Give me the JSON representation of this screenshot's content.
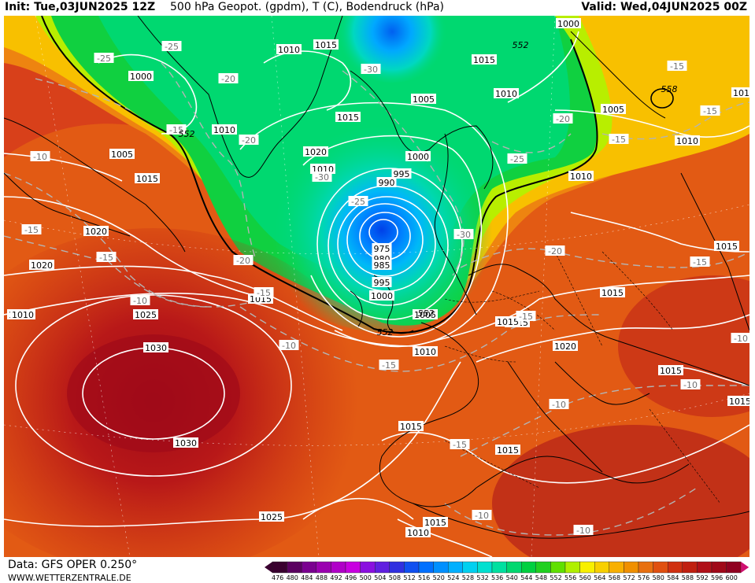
{
  "header": {
    "init": "Init: Tue,03JUN2025 12Z",
    "title": "500 hPa Geopot. (gpdm), T (C), Bodendruck (hPa)",
    "valid": "Valid: Wed,04JUN2025 00Z"
  },
  "footer": {
    "data_source": "Data: GFS OPER 0.250°",
    "website": "WWW.WETTERZENTRALE.DE"
  },
  "colorbar": {
    "ticks": [
      "476",
      "480",
      "484",
      "488",
      "492",
      "496",
      "500",
      "504",
      "508",
      "512",
      "516",
      "520",
      "524",
      "528",
      "532",
      "536",
      "540",
      "544",
      "548",
      "552",
      "556",
      "560",
      "564",
      "568",
      "572",
      "576",
      "580",
      "584",
      "588",
      "592",
      "596",
      "600"
    ],
    "colors": [
      "#3a0030",
      "#5a0060",
      "#7a0090",
      "#9a00b0",
      "#b000c8",
      "#c800e0",
      "#8a10e0",
      "#6020e0",
      "#3030e0",
      "#1050f0",
      "#0070ff",
      "#0090ff",
      "#00b0ff",
      "#00d0f0",
      "#00e0d0",
      "#00e0a0",
      "#00d870",
      "#00d040",
      "#20d020",
      "#60e000",
      "#b0f000",
      "#f8f000",
      "#f8d000",
      "#f8b000",
      "#f09000",
      "#e87010",
      "#e05010",
      "#d03010",
      "#c02010",
      "#b01018",
      "#a00818",
      "#900020"
    ]
  },
  "map": {
    "isobar_labels": [
      "1000",
      "1005",
      "1010",
      "1015",
      "1020",
      "1025",
      "1030",
      "990",
      "995",
      "975",
      "980",
      "985"
    ],
    "temp_labels": [
      "-10",
      "-15",
      "-20",
      "-25",
      "-30"
    ],
    "geopot_labels": [
      "552",
      "558"
    ],
    "labels": [
      {
        "t": "1000",
        "k": "p"
      },
      {
        "t": "1005",
        "k": "p"
      },
      {
        "t": "1010",
        "k": "p"
      },
      {
        "t": "1010",
        "k": "p"
      },
      {
        "t": "1015",
        "k": "p"
      },
      {
        "t": "1015",
        "k": "p"
      },
      {
        "t": "1010",
        "k": "p"
      },
      {
        "t": "1005",
        "k": "p"
      },
      {
        "t": "1015",
        "k": "p"
      },
      {
        "t": "1020",
        "k": "p"
      },
      {
        "t": "1010",
        "k": "p"
      },
      {
        "t": "1000",
        "k": "p"
      },
      {
        "t": "995",
        "k": "p"
      },
      {
        "t": "990",
        "k": "p"
      },
      {
        "t": "975",
        "k": "p"
      },
      {
        "t": "980",
        "k": "p"
      },
      {
        "t": "985",
        "k": "p"
      },
      {
        "t": "995",
        "k": "p"
      },
      {
        "t": "1000",
        "k": "p"
      },
      {
        "t": "1005",
        "k": "p"
      },
      {
        "t": "1010",
        "k": "p"
      },
      {
        "t": "1015",
        "k": "p"
      },
      {
        "t": "1015",
        "k": "p"
      },
      {
        "t": "1020",
        "k": "p"
      },
      {
        "t": "1020",
        "k": "p"
      },
      {
        "t": "1025",
        "k": "p"
      },
      {
        "t": "1030",
        "k": "p"
      },
      {
        "t": "1030",
        "k": "p"
      },
      {
        "t": "1025",
        "k": "p"
      },
      {
        "t": "1015",
        "k": "p"
      },
      {
        "t": "1015",
        "k": "p"
      },
      {
        "t": "1010",
        "k": "p"
      },
      {
        "t": "1000",
        "k": "p"
      },
      {
        "t": "1015",
        "k": "p"
      },
      {
        "t": "1010",
        "k": "p"
      },
      {
        "t": "1005",
        "k": "p"
      },
      {
        "t": "1010",
        "k": "p"
      },
      {
        "t": "1010",
        "k": "p"
      },
      {
        "t": "1015",
        "k": "p"
      },
      {
        "t": "1015",
        "k": "p"
      },
      {
        "t": "1015",
        "k": "p"
      },
      {
        "t": "1015",
        "k": "p"
      },
      {
        "t": "1020",
        "k": "p"
      },
      {
        "t": "1015",
        "k": "p"
      },
      {
        "t": "1015",
        "k": "p"
      },
      {
        "t": "1015",
        "k": "p"
      },
      {
        "t": "1010",
        "k": "p"
      },
      {
        "t": "1015",
        "k": "p"
      },
      {
        "t": "1020",
        "k": "p"
      },
      {
        "t": "1015",
        "k": "p"
      },
      {
        "t": "-25",
        "k": "t"
      },
      {
        "t": "-25",
        "k": "t"
      },
      {
        "t": "-20",
        "k": "t"
      },
      {
        "t": "-30",
        "k": "t"
      },
      {
        "t": "-15",
        "k": "t"
      },
      {
        "t": "-20",
        "k": "t"
      },
      {
        "t": "-10",
        "k": "t"
      },
      {
        "t": "-30",
        "k": "t"
      },
      {
        "t": "-25",
        "k": "t"
      },
      {
        "t": "-15",
        "k": "t"
      },
      {
        "t": "-15",
        "k": "t"
      },
      {
        "t": "-20",
        "k": "t"
      },
      {
        "t": "-30",
        "k": "t"
      },
      {
        "t": "-10",
        "k": "t"
      },
      {
        "t": "-15",
        "k": "t"
      },
      {
        "t": "-10",
        "k": "t"
      },
      {
        "t": "-15",
        "k": "t"
      },
      {
        "t": "-20",
        "k": "t"
      },
      {
        "t": "-25",
        "k": "t"
      },
      {
        "t": "-15",
        "k": "t"
      },
      {
        "t": "-15",
        "k": "t"
      },
      {
        "t": "-15",
        "k": "t"
      },
      {
        "t": "-20",
        "k": "t"
      },
      {
        "t": "-15",
        "k": "t"
      },
      {
        "t": "-15",
        "k": "t"
      },
      {
        "t": "-10",
        "k": "t"
      },
      {
        "t": "-10",
        "k": "t"
      },
      {
        "t": "-15",
        "k": "t"
      },
      {
        "t": "-10",
        "k": "t"
      },
      {
        "t": "-10",
        "k": "t"
      },
      {
        "t": "-10",
        "k": "t"
      },
      {
        "t": "-10",
        "k": "t"
      },
      {
        "t": "552",
        "k": "g"
      },
      {
        "t": "552",
        "k": "g"
      },
      {
        "t": "552",
        "k": "g"
      },
      {
        "t": "552",
        "k": "g"
      },
      {
        "t": "558",
        "k": "g"
      }
    ]
  }
}
